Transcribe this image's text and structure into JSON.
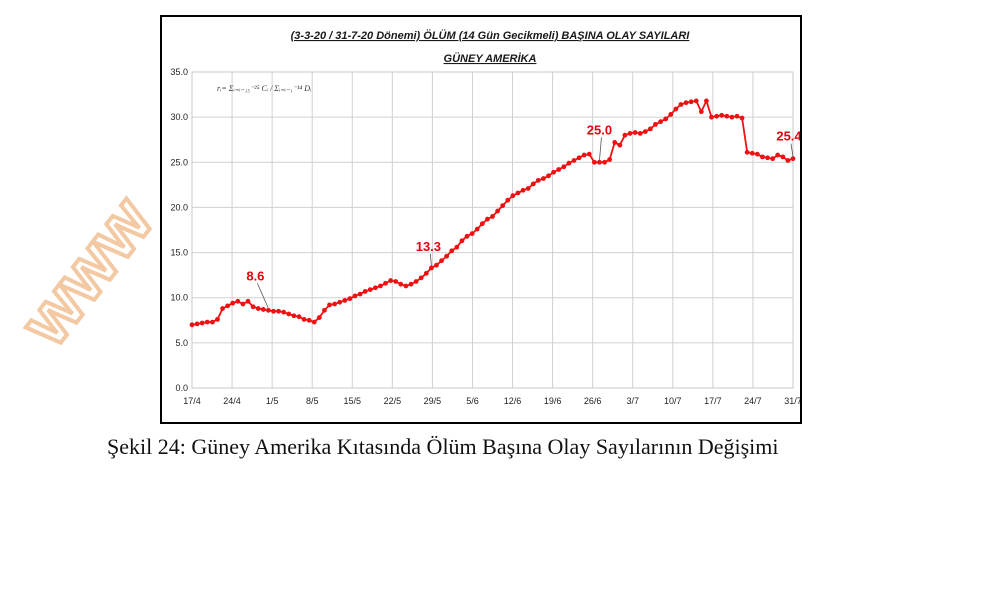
{
  "watermark_text": "www",
  "figure": {
    "caption": "Şekil 24: Güney Amerika Kıtasında Ölüm Başına Olay Sayılarının Değişimi"
  },
  "chart_data": {
    "type": "line",
    "title": "(3-3-20 / 31-7-20 Dönemi) ÖLÜM (14 Gün Gecikmeli) BAŞINA OLAY SAYILARI",
    "subtitle": "GÜNEY AMERİKA",
    "formula": "rᵢ= Σᵢ₌ᵢ₋₁₅⁻²⁵ Cᵢ / Σᵢ₌ᵢ₋₁⁻¹⁴ Dᵢ",
    "xlabel": "",
    "ylabel": "",
    "ylim": [
      0,
      35
    ],
    "yticks": [
      "0.0",
      "5.0",
      "10.0",
      "15.0",
      "20.0",
      "25.0",
      "30.0",
      "35.0"
    ],
    "xticks": [
      "17/4",
      "24/4",
      "1/5",
      "8/5",
      "15/5",
      "22/5",
      "29/5",
      "5/6",
      "12/6",
      "19/6",
      "26/6",
      "3/7",
      "10/7",
      "17/7",
      "24/7",
      "31/7"
    ],
    "grid": true,
    "legend": "none",
    "color": "#ee1111",
    "series": [
      {
        "values": [
          7.0,
          7.1,
          7.2,
          7.3,
          7.3,
          7.6,
          8.8,
          9.1,
          9.4,
          9.6,
          9.3,
          9.6,
          9.0,
          8.8,
          8.7,
          8.6,
          8.5,
          8.5,
          8.4,
          8.2,
          8.0,
          7.9,
          7.6,
          7.5,
          7.3,
          7.8,
          8.6,
          9.2,
          9.3,
          9.5,
          9.7,
          9.9,
          10.2,
          10.4,
          10.7,
          10.9,
          11.1,
          11.3,
          11.6,
          11.9,
          11.8,
          11.5,
          11.3,
          11.5,
          11.8,
          12.2,
          12.7,
          13.3,
          13.6,
          14.1,
          14.6,
          15.2,
          15.6,
          16.3,
          16.8,
          17.1,
          17.6,
          18.2,
          18.7,
          19.0,
          19.6,
          20.2,
          20.8,
          21.3,
          21.6,
          21.9,
          22.1,
          22.6,
          23.0,
          23.2,
          23.5,
          23.9,
          24.2,
          24.5,
          24.9,
          25.2,
          25.5,
          25.8,
          25.9,
          25.0,
          25.0,
          25.0,
          25.3,
          27.2,
          26.9,
          28.0,
          28.2,
          28.3,
          28.2,
          28.4,
          28.7,
          29.2,
          29.5,
          29.8,
          30.3,
          30.9,
          31.4,
          31.6,
          31.7,
          31.8,
          30.6,
          31.8,
          30.0,
          30.1,
          30.2,
          30.1,
          30.0,
          30.1,
          29.9,
          26.1,
          26.0,
          25.9,
          25.6,
          25.5,
          25.4,
          25.8,
          25.6,
          25.2,
          25.4
        ]
      }
    ],
    "annotations": [
      {
        "label": "8.6",
        "index": 15,
        "value": 8.6
      },
      {
        "label": "13.3",
        "index": 47,
        "value": 13.3
      },
      {
        "label": "25.0",
        "index": 80,
        "value": 25.0
      },
      {
        "label": "25.4",
        "index": 118,
        "value": 25.4
      }
    ]
  }
}
